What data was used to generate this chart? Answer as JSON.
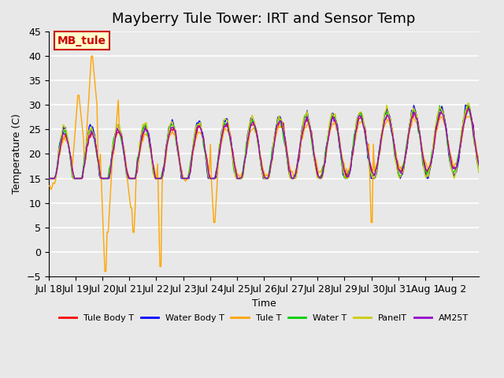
{
  "title": "Mayberry Tule Tower: IRT and Sensor Temp",
  "xlabel": "Time",
  "ylabel": "Temperature (C)",
  "ylim": [
    -5,
    45
  ],
  "yticks": [
    -5,
    0,
    5,
    10,
    15,
    20,
    25,
    30,
    35,
    40,
    45
  ],
  "x_tick_labels": [
    "Jul 18",
    "Jul 19",
    "Jul 20",
    "Jul 21",
    "Jul 22",
    "Jul 23",
    "Jul 24",
    "Jul 25",
    "Jul 26",
    "Jul 27",
    "Jul 28",
    "Jul 29",
    "Jul 30",
    "Jul 31",
    "Aug 1",
    "Aug 2"
  ],
  "legend_entries": [
    "Tule Body T",
    "Water Body T",
    "Tule T",
    "Water T",
    "PanelT",
    "AM25T"
  ],
  "legend_colors": [
    "#ff0000",
    "#0000ff",
    "#ffa500",
    "#00cc00",
    "#cccc00",
    "#9900cc"
  ],
  "series_colors": {
    "tule_body": "#ff0000",
    "water_body": "#0000ff",
    "tule": "#ffa500",
    "water": "#00cc00",
    "panel": "#cccc00",
    "am25": "#9900cc"
  },
  "annotation_text": "MB_tule",
  "annotation_color": "#cc0000",
  "annotation_bg": "#ffffcc",
  "plot_bg": "#e8e8e8",
  "grid_color": "#ffffff",
  "title_fontsize": 13
}
